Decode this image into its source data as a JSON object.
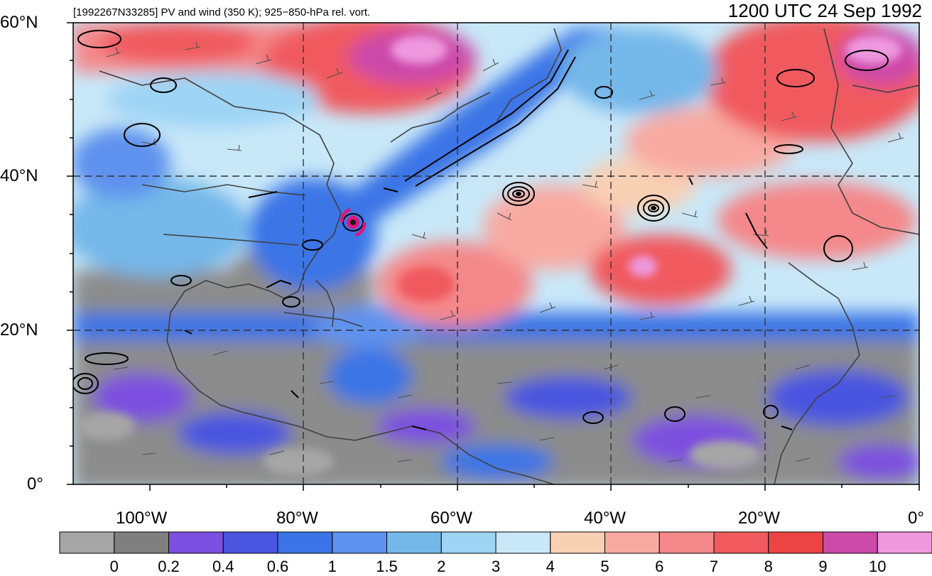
{
  "header": {
    "subtitle": "[1992267N33285] PV and wind (350 K); 925−850-hPa rel. vort.",
    "datetime": "1200 UTC 24 Sep 1992"
  },
  "axes": {
    "lat_labels": [
      "60°N",
      "40°N",
      "20°N",
      "0°"
    ],
    "lon_labels": [
      "100°W",
      "80°W",
      "60°W",
      "40°W",
      "20°W",
      "0°"
    ]
  },
  "colorbar": {
    "labels": [
      "0",
      "0.2",
      "0.4",
      "0.6",
      "1",
      "1.5",
      "2",
      "3",
      "4",
      "5",
      "6",
      "7",
      "8",
      "9",
      "10"
    ],
    "colors": [
      "#a6a6a6",
      "#7f7f7f",
      "#7b4fe0",
      "#4a55e0",
      "#3a74e6",
      "#5e92ee",
      "#74b8ea",
      "#9ed4f4",
      "#c8e8f8",
      "#f8d0b4",
      "#f8aaa2",
      "#f4888a",
      "#f05a5e",
      "#ec4444",
      "#cc4aaa",
      "#ee98de"
    ]
  },
  "colors": {
    "storm_symbol": "#e0157a",
    "contour": "#000000",
    "coast": "#404040"
  }
}
